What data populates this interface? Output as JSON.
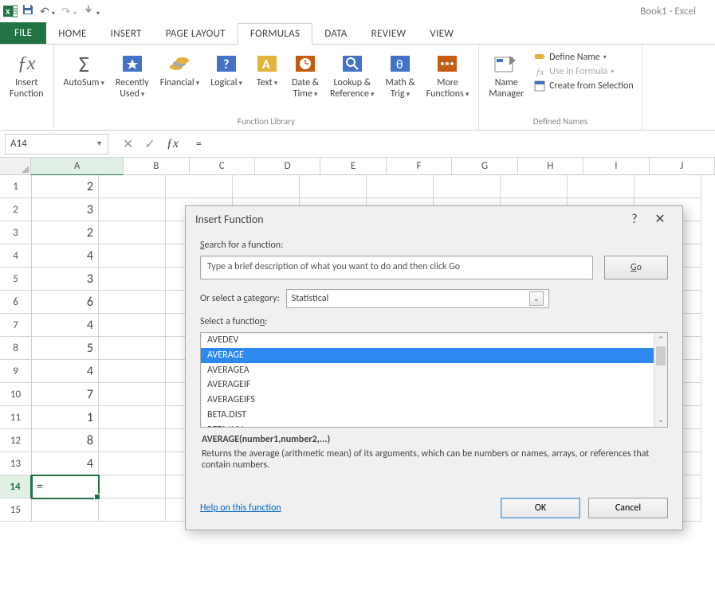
{
  "doc_title": "Book1 - Excel",
  "qat": {
    "save_title": "Save",
    "undo_title": "Undo",
    "redo_title": "Redo",
    "touch_title": "Touch Mode"
  },
  "tabs": {
    "file": "FILE",
    "home": "HOME",
    "insert": "INSERT",
    "page_layout": "PAGE LAYOUT",
    "formulas": "FORMULAS",
    "data": "DATA",
    "review": "REVIEW",
    "view": "VIEW"
  },
  "ribbon": {
    "insert_function": "Insert\nFunction",
    "autosum": "AutoSum",
    "recently_used": "Recently\nUsed",
    "financial": "Financial",
    "logical": "Logical",
    "text": "Text",
    "date_time": "Date &\nTime",
    "lookup_ref": "Lookup &\nReference",
    "math_trig": "Math &\nTrig",
    "more_functions": "More\nFunctions",
    "function_library_label": "Function Library",
    "name_manager": "Name\nManager",
    "define_name": "Define Name",
    "use_in_formula": "Use in Formula",
    "create_from_selection": "Create from Selection",
    "defined_names_label": "Defined Names"
  },
  "namebox": "A14",
  "formula_value": "=",
  "columns": [
    "A",
    "B",
    "C",
    "D",
    "E",
    "F",
    "G",
    "H",
    "I",
    "J"
  ],
  "row_values": [
    "2",
    "3",
    "2",
    "4",
    "3",
    "6",
    "4",
    "5",
    "4",
    "7",
    "1",
    "8",
    "4"
  ],
  "active_row": 14,
  "active_cell_value": "=",
  "dialog": {
    "title": "Insert Function",
    "search_label": "Search for a function:",
    "search_placeholder": "Type a brief description of what you want to do and then click Go",
    "go": "Go",
    "category_label": "Or select a category:",
    "category_value": "Statistical",
    "select_label": "Select a function:",
    "functions": [
      "AVEDEV",
      "AVERAGE",
      "AVERAGEA",
      "AVERAGEIF",
      "AVERAGEIFS",
      "BETA.DIST",
      "BETA.INV"
    ],
    "selected_index": 1,
    "signature": "AVERAGE(number1,number2,...)",
    "description": "Returns the average (arithmetic mean) of its arguments, which can be numbers or names, arrays, or references that contain numbers.",
    "help_link": "Help on this function",
    "ok": "OK",
    "cancel": "Cancel"
  },
  "colors": {
    "excel_green": "#217346",
    "selection_blue": "#2d89ef"
  }
}
